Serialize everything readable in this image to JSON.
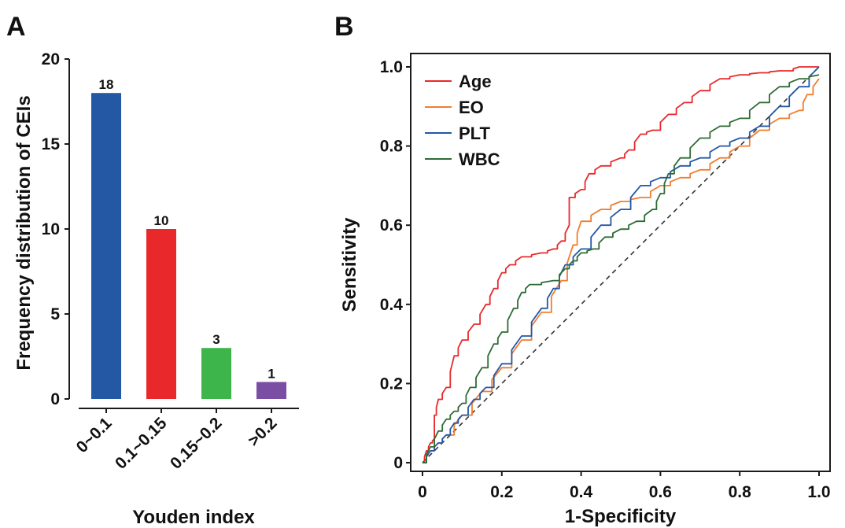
{
  "panel_a": {
    "letter": "A"
  },
  "panel_b": {
    "letter": "B"
  },
  "chart_data": [
    {
      "type": "bar",
      "categories": [
        "0~0.1",
        "0.1~0.15",
        "0.15~0.2",
        ">0.2"
      ],
      "values": [
        18,
        10,
        3,
        1
      ],
      "data_labels": [
        "18",
        "10",
        "3",
        "1"
      ],
      "colors": [
        "#2457a4",
        "#e8282b",
        "#3db54a",
        "#7a4fa3"
      ],
      "xlabel": "Youden index",
      "ylabel": "Frequency distribution of CEIs",
      "ylim": [
        0,
        20
      ],
      "yticks": [
        0,
        5,
        10,
        15,
        20
      ],
      "ytick_labels": [
        "0",
        "5",
        "10",
        "15",
        "20"
      ],
      "grid": false
    },
    {
      "type": "line",
      "xlabel": "1-Specificity",
      "ylabel": "Sensitivity",
      "xlim": [
        0,
        1
      ],
      "ylim": [
        0,
        1
      ],
      "xticks": [
        0,
        0.2,
        0.4,
        0.6,
        0.8,
        1.0
      ],
      "xtick_labels": [
        "0",
        "0.2",
        "0.4",
        "0.6",
        "0.8",
        "1.0"
      ],
      "yticks": [
        0,
        0.2,
        0.4,
        0.6,
        0.8,
        1.0
      ],
      "ytick_labels": [
        "0",
        "0.2",
        "0.4",
        "0.6",
        "0.8",
        "1.0"
      ],
      "legend_position": "top-left",
      "grid": false,
      "reference_line": {
        "x": [
          0,
          1
        ],
        "y": [
          0,
          1
        ],
        "style": "dashed",
        "color": "#333333"
      },
      "series": [
        {
          "name": "Age",
          "color": "#e8282b",
          "x": [
            0,
            0.01,
            0.02,
            0.03,
            0.03,
            0.04,
            0.06,
            0.08,
            0.1,
            0.13,
            0.16,
            0.18,
            0.2,
            0.22,
            0.25,
            0.3,
            0.33,
            0.35,
            0.37,
            0.37,
            0.4,
            0.42,
            0.45,
            0.5,
            0.52,
            0.55,
            0.58,
            0.62,
            0.66,
            0.7,
            0.75,
            0.8,
            0.85,
            0.9,
            0.92,
            0.95,
            1.0
          ],
          "y": [
            0,
            0.03,
            0.05,
            0.06,
            0.12,
            0.16,
            0.19,
            0.27,
            0.31,
            0.35,
            0.4,
            0.44,
            0.48,
            0.5,
            0.52,
            0.53,
            0.54,
            0.56,
            0.6,
            0.67,
            0.69,
            0.73,
            0.75,
            0.77,
            0.79,
            0.83,
            0.84,
            0.88,
            0.91,
            0.94,
            0.97,
            0.98,
            0.985,
            0.99,
            0.99,
            1.0,
            1.0
          ]
        },
        {
          "name": "EO",
          "color": "#f07d2f",
          "x": [
            0,
            0.02,
            0.04,
            0.06,
            0.1,
            0.15,
            0.2,
            0.25,
            0.3,
            0.35,
            0.38,
            0.4,
            0.45,
            0.5,
            0.55,
            0.6,
            0.65,
            0.7,
            0.75,
            0.8,
            0.85,
            0.9,
            0.95,
            0.97,
            1.0
          ],
          "y": [
            0,
            0.03,
            0.05,
            0.07,
            0.12,
            0.18,
            0.24,
            0.31,
            0.38,
            0.46,
            0.55,
            0.61,
            0.64,
            0.66,
            0.67,
            0.7,
            0.72,
            0.74,
            0.77,
            0.8,
            0.84,
            0.87,
            0.89,
            0.93,
            0.97
          ]
        },
        {
          "name": "PLT",
          "color": "#2457a4",
          "x": [
            0,
            0.02,
            0.04,
            0.06,
            0.08,
            0.1,
            0.13,
            0.16,
            0.2,
            0.25,
            0.3,
            0.33,
            0.36,
            0.4,
            0.45,
            0.5,
            0.55,
            0.6,
            0.65,
            0.7,
            0.75,
            0.8,
            0.85,
            0.9,
            0.95,
            1.0
          ],
          "y": [
            0,
            0.03,
            0.05,
            0.07,
            0.1,
            0.12,
            0.16,
            0.19,
            0.25,
            0.32,
            0.39,
            0.44,
            0.5,
            0.54,
            0.6,
            0.64,
            0.7,
            0.72,
            0.75,
            0.77,
            0.8,
            0.82,
            0.85,
            0.9,
            0.95,
            1.0
          ]
        },
        {
          "name": "WBC",
          "color": "#2e6b34",
          "x": [
            0,
            0.02,
            0.04,
            0.06,
            0.08,
            0.1,
            0.12,
            0.15,
            0.18,
            0.2,
            0.23,
            0.25,
            0.27,
            0.33,
            0.36,
            0.38,
            0.4,
            0.43,
            0.46,
            0.5,
            0.54,
            0.58,
            0.6,
            0.62,
            0.65,
            0.7,
            0.75,
            0.8,
            0.85,
            0.9,
            0.95,
            1.0
          ],
          "y": [
            0,
            0.04,
            0.08,
            0.11,
            0.13,
            0.15,
            0.19,
            0.24,
            0.3,
            0.33,
            0.39,
            0.43,
            0.45,
            0.46,
            0.49,
            0.51,
            0.53,
            0.54,
            0.57,
            0.59,
            0.61,
            0.64,
            0.68,
            0.73,
            0.77,
            0.82,
            0.85,
            0.87,
            0.91,
            0.95,
            0.97,
            0.98
          ]
        }
      ]
    }
  ]
}
